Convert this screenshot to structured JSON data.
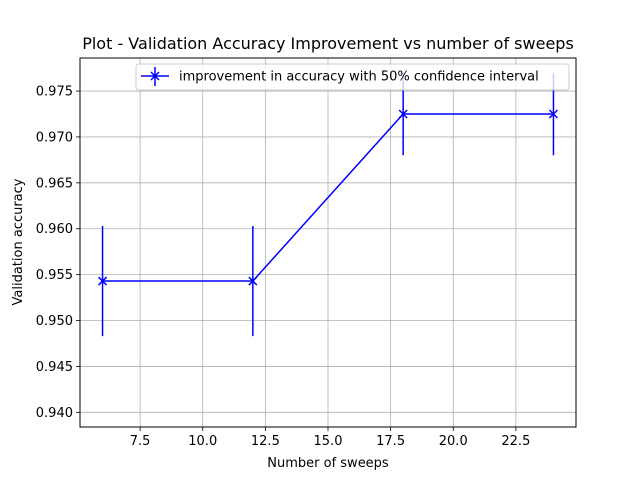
{
  "chart_data": {
    "type": "line",
    "title": "Plot - Validation Accuracy Improvement vs number of sweeps",
    "xlabel": "Number of sweeps",
    "ylabel": "Validation accuracy",
    "xlim": [
      5.1,
      24.9
    ],
    "ylim": [
      0.9384,
      0.9786
    ],
    "xticks": [
      7.5,
      10.0,
      12.5,
      15.0,
      17.5,
      20.0,
      22.5
    ],
    "xtick_labels": [
      "7.5",
      "10.0",
      "12.5",
      "15.0",
      "17.5",
      "20.0",
      "22.5"
    ],
    "yticks": [
      0.94,
      0.945,
      0.95,
      0.955,
      0.96,
      0.965,
      0.97,
      0.975
    ],
    "ytick_labels": [
      "0.940",
      "0.945",
      "0.950",
      "0.955",
      "0.960",
      "0.965",
      "0.970",
      "0.975"
    ],
    "grid": true,
    "legend_position": "top-right",
    "series": [
      {
        "name": "improvement in accuracy with 50% confidence interval",
        "color": "#0000ff",
        "marker": "x",
        "x": [
          6,
          12,
          18,
          24
        ],
        "y": [
          0.9543,
          0.9543,
          0.9725,
          0.9725
        ],
        "yerr": [
          0.006,
          0.006,
          0.0045,
          0.0045
        ]
      }
    ]
  }
}
